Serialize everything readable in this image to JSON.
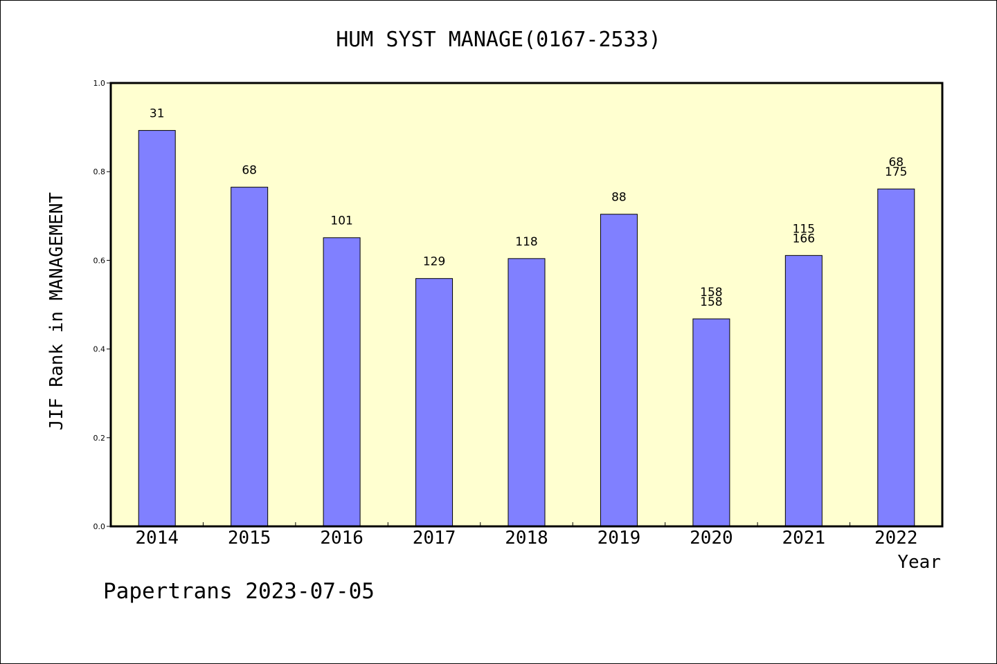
{
  "chart_data": {
    "type": "bar",
    "title": "HUM SYST MANAGE(0167-2533)",
    "xlabel": "Year",
    "ylabel": "JIF Rank in MANAGEMENT",
    "ylim": [
      0,
      1.0
    ],
    "yticks": [
      "0.0",
      "0.2",
      "0.4",
      "0.6",
      "0.8",
      "1.0"
    ],
    "grid": false,
    "background": "#ffffd0",
    "bar_color": "#8080ff",
    "categories": [
      "2014",
      "2015",
      "2016",
      "2017",
      "2018",
      "2019",
      "2020",
      "2021",
      "2022"
    ],
    "values": [
      0.893,
      0.765,
      0.651,
      0.559,
      0.604,
      0.704,
      0.468,
      0.611,
      0.761
    ],
    "bar_labels": [
      [
        "31"
      ],
      [
        "68"
      ],
      [
        "101"
      ],
      [
        "129"
      ],
      [
        "118"
      ],
      [
        "88"
      ],
      [
        "158",
        "158"
      ],
      [
        "115",
        "166"
      ],
      [
        "68",
        "175"
      ]
    ]
  },
  "footer": "Papertrans 2023-07-05"
}
